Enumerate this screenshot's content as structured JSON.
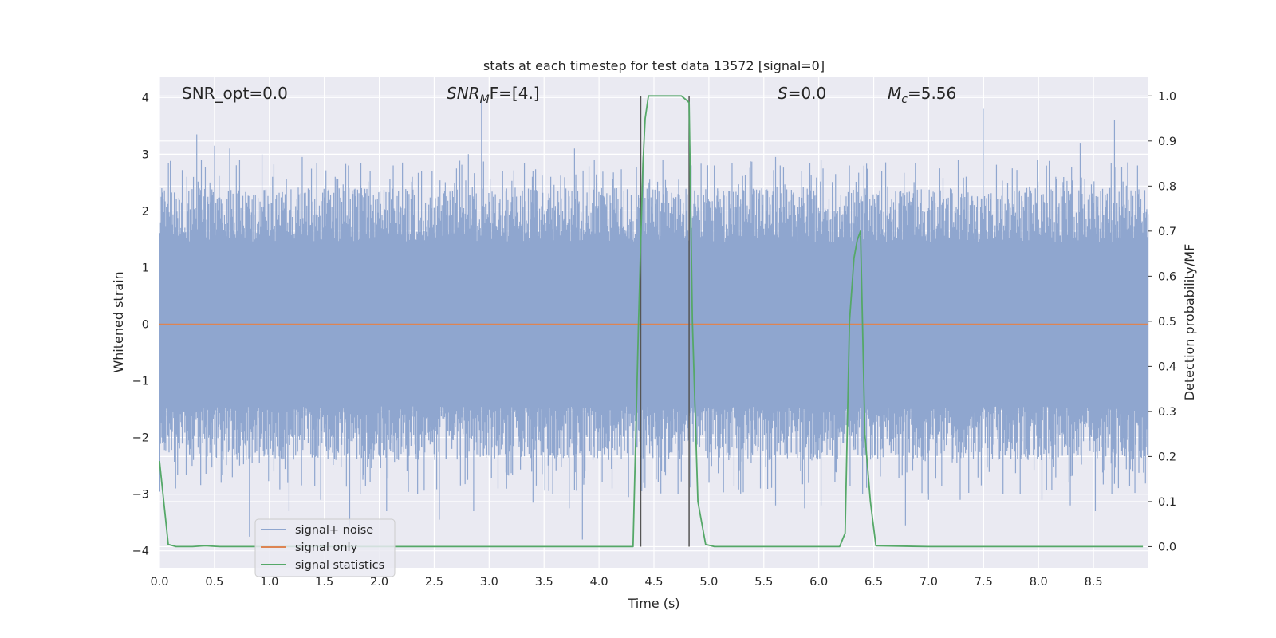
{
  "chart_data": {
    "type": "line",
    "title": "stats at each timestep for test data 13572 [signal=0]",
    "xlabel": "Time (s)",
    "ylabel_left": "Whitened strain",
    "ylabel_right": "Detection probability/MF",
    "xlim": [
      0.0,
      9.0
    ],
    "ylim_left": [
      -4.3,
      4.37
    ],
    "ylim_right": [
      -0.047,
      1.043
    ],
    "x_ticks": [
      "0.0",
      "0.5",
      "1.0",
      "1.5",
      "2.0",
      "2.5",
      "3.0",
      "3.5",
      "4.0",
      "4.5",
      "5.0",
      "5.5",
      "6.0",
      "6.5",
      "7.0",
      "7.5",
      "8.0",
      "8.5"
    ],
    "y_left_ticks": [
      "4",
      "3",
      "2",
      "1",
      "0",
      "−1",
      "−2",
      "−3",
      "−4"
    ],
    "y_right_ticks": [
      "1.0",
      "0.9",
      "0.8",
      "0.7",
      "0.6",
      "0.5",
      "0.4",
      "0.3",
      "0.2",
      "0.1",
      "0.0"
    ],
    "grid": true,
    "legend_position": "lower-left",
    "annotations": {
      "snr_opt": "SNR_opt=0.0",
      "snr_mf_prefix": "SNR",
      "snr_mf_sub": "M",
      "snr_mf_suffix": "F=[4.]",
      "s_var": "S",
      "s_value": "=0.0",
      "mc_var": "M",
      "mc_sub": "c",
      "mc_value": "=5.56"
    },
    "series": [
      {
        "name": "signal+ noise",
        "color": "#8fa6cf",
        "description": "whitened strain noise, approximately std 1, peaks up to about 4.0 and down to about -3.8",
        "envelope_peaks": [
          [
            0.02,
            2.4
          ],
          [
            0.08,
            2.85
          ],
          [
            0.25,
            2.6
          ],
          [
            0.34,
            3.35
          ],
          [
            0.38,
            2.9
          ],
          [
            0.5,
            3.15
          ],
          [
            0.56,
            2.2
          ],
          [
            0.64,
            3.1
          ],
          [
            0.73,
            2.9
          ],
          [
            0.93,
            3.0
          ],
          [
            1.03,
            2.6
          ],
          [
            1.3,
            2.95
          ],
          [
            1.43,
            2.85
          ],
          [
            1.6,
            2.6
          ],
          [
            1.72,
            2.8
          ],
          [
            1.92,
            2.7
          ],
          [
            2.13,
            2.8
          ],
          [
            2.3,
            2.6
          ],
          [
            2.48,
            2.7
          ],
          [
            2.81,
            3.0
          ],
          [
            2.93,
            4.0
          ],
          [
            3.12,
            2.7
          ],
          [
            3.32,
            2.85
          ],
          [
            3.4,
            2.7
          ],
          [
            3.56,
            2.6
          ],
          [
            3.78,
            3.1
          ],
          [
            3.96,
            2.9
          ],
          [
            4.16,
            2.4
          ],
          [
            4.4,
            2.95
          ],
          [
            4.58,
            2.9
          ],
          [
            4.83,
            3.15
          ],
          [
            5.05,
            2.8
          ],
          [
            5.21,
            2.85
          ],
          [
            5.61,
            2.95
          ],
          [
            5.84,
            2.7
          ],
          [
            6.02,
            2.9
          ],
          [
            6.15,
            2.65
          ],
          [
            6.28,
            2.8
          ],
          [
            6.57,
            2.7
          ],
          [
            6.88,
            2.85
          ],
          [
            7.1,
            2.75
          ],
          [
            7.27,
            2.9
          ],
          [
            7.5,
            3.8
          ],
          [
            7.76,
            2.75
          ],
          [
            7.99,
            2.9
          ],
          [
            8.16,
            2.6
          ],
          [
            8.38,
            3.2
          ],
          [
            8.69,
            3.6
          ],
          [
            8.9,
            2.8
          ]
        ],
        "envelope_troughs": [
          [
            0.02,
            -2.0
          ],
          [
            0.15,
            -2.9
          ],
          [
            0.3,
            -2.5
          ],
          [
            0.56,
            -2.8
          ],
          [
            0.82,
            -3.75
          ],
          [
            1.18,
            -3.3
          ],
          [
            1.47,
            -3.1
          ],
          [
            1.73,
            -3.55
          ],
          [
            1.83,
            -3.0
          ],
          [
            2.07,
            -3.3
          ],
          [
            2.35,
            -3.0
          ],
          [
            2.55,
            -3.45
          ],
          [
            2.86,
            -3.3
          ],
          [
            3.08,
            -2.9
          ],
          [
            3.4,
            -3.15
          ],
          [
            3.58,
            -3.0
          ],
          [
            3.73,
            -3.25
          ],
          [
            3.85,
            -3.8
          ],
          [
            4.12,
            -2.9
          ],
          [
            4.27,
            -3.05
          ],
          [
            4.72,
            -3.0
          ],
          [
            5.0,
            -2.8
          ],
          [
            5.23,
            -2.85
          ],
          [
            5.47,
            -2.9
          ],
          [
            5.61,
            -3.2
          ],
          [
            5.87,
            -3.25
          ],
          [
            6.02,
            -3.2
          ],
          [
            6.4,
            -3.0
          ],
          [
            6.79,
            -3.55
          ],
          [
            7.0,
            -3.1
          ],
          [
            7.29,
            -3.1
          ],
          [
            7.68,
            -3.0
          ],
          [
            7.83,
            -3.0
          ],
          [
            8.03,
            -3.1
          ],
          [
            8.29,
            -3.2
          ],
          [
            8.52,
            -3.3
          ],
          [
            8.67,
            -3.0
          ],
          [
            8.86,
            -2.6
          ]
        ]
      },
      {
        "name": "signal only",
        "color": "#dd8452",
        "x": [
          0.0,
          9.0
        ],
        "y": [
          0.0,
          0.0
        ]
      },
      {
        "name": "signal statistics",
        "color": "#55a868",
        "axis": "right",
        "x": [
          0.0,
          0.08,
          0.15,
          0.3,
          0.42,
          0.48,
          0.55,
          0.7,
          1.0,
          2.0,
          3.0,
          4.0,
          4.31,
          4.36,
          4.4,
          4.42,
          4.45,
          4.5,
          4.6,
          4.7,
          4.75,
          4.8,
          4.82,
          4.85,
          4.9,
          4.97,
          5.05,
          5.5,
          6.0,
          6.19,
          6.24,
          6.28,
          6.32,
          6.35,
          6.38,
          6.42,
          6.47,
          6.52,
          7.0,
          8.0,
          8.95
        ],
        "y": [
          0.19,
          0.005,
          0.0,
          0.0,
          0.002,
          0.001,
          0.0,
          0.0,
          0.0,
          0.0,
          0.0,
          0.0,
          0.0,
          0.5,
          0.85,
          0.95,
          1.0,
          1.0,
          1.0,
          1.0,
          1.0,
          0.99,
          0.985,
          0.5,
          0.1,
          0.005,
          0.0,
          0.0,
          0.0,
          0.0,
          0.03,
          0.5,
          0.64,
          0.68,
          0.7,
          0.25,
          0.1,
          0.002,
          0.0,
          0.0,
          0.0
        ]
      }
    ],
    "vertical_markers": {
      "color": "#555555",
      "x": [
        4.38,
        4.82
      ],
      "y_range_right": [
        0.0,
        1.0
      ]
    }
  }
}
